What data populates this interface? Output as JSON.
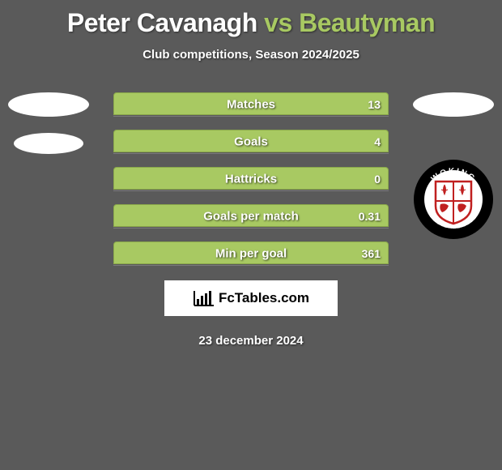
{
  "title": {
    "player1": "Peter Cavanagh",
    "vs": "vs",
    "player2": "Beautyman",
    "color_p1": "#ffffff",
    "color_vs": "#a8c962",
    "color_p2": "#a8c962"
  },
  "subtitle": "Club competitions, Season 2024/2025",
  "background_color": "#5a5a5a",
  "bar_area_width": 340,
  "stats": [
    {
      "label": "Matches",
      "value": "13",
      "fill_pct": 100,
      "fill_color": "#a8c962",
      "border_color": "#8aa84a"
    },
    {
      "label": "Goals",
      "value": "4",
      "fill_pct": 100,
      "fill_color": "#a8c962",
      "border_color": "#8aa84a"
    },
    {
      "label": "Hattricks",
      "value": "0",
      "fill_pct": 100,
      "fill_color": "#a8c962",
      "border_color": "#8aa84a"
    },
    {
      "label": "Goals per match",
      "value": "0.31",
      "fill_pct": 100,
      "fill_color": "#a8c962",
      "border_color": "#8aa84a"
    },
    {
      "label": "Min per goal",
      "value": "361",
      "fill_pct": 100,
      "fill_color": "#a8c962",
      "border_color": "#8aa84a"
    }
  ],
  "left_badges": {
    "shape": "ellipse",
    "count": 2,
    "color": "#ffffff"
  },
  "right_badge_ellipse": {
    "shape": "ellipse",
    "color": "#ffffff"
  },
  "crest": {
    "club": "Woking",
    "top_text": "WOKING",
    "bottom_text": "FOOTBALL CLUB",
    "ring_color": "#000000",
    "ring_text_color": "#ffffff",
    "shield_bg": "#ffffff",
    "shield_border": "#c02020",
    "accent_color": "#c02020"
  },
  "brand": {
    "text": "FcTables.com",
    "icon_color": "#000000",
    "box_bg": "#ffffff"
  },
  "date": "23 december 2024"
}
